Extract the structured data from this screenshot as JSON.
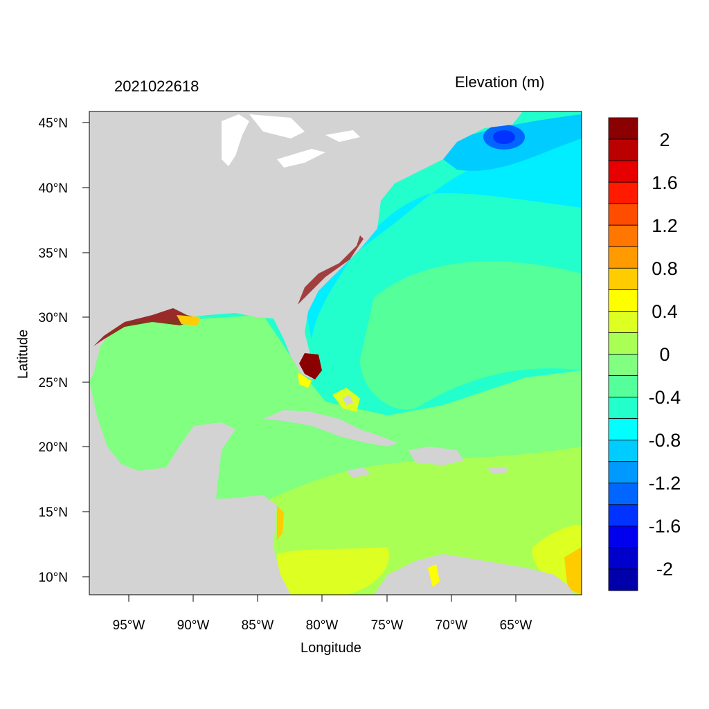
{
  "map": {
    "title_left": "2021022618",
    "title_right": "Elevation (m)",
    "xlabel": "Longitude",
    "ylabel": "Latitude",
    "x_ticks": [
      "95°W",
      "90°W",
      "85°W",
      "80°W",
      "75°W",
      "70°W",
      "65°W"
    ],
    "y_ticks": [
      "45°N",
      "40°N",
      "35°N",
      "30°N",
      "25°N",
      "20°N",
      "15°N",
      "10°N"
    ],
    "lon_range": [
      -98,
      -60
    ],
    "lat_range": [
      8.5,
      46
    ]
  },
  "colorbar": {
    "labels": [
      "2",
      "1.6",
      "1.2",
      "0.8",
      "0.4",
      "0",
      "-0.4",
      "-0.8",
      "-1.2",
      "-1.6",
      "-2"
    ],
    "colors_top_to_bottom": [
      "#8b0000",
      "#bb0000",
      "#e60000",
      "#ff1a00",
      "#ff4d00",
      "#ff7700",
      "#ff9a00",
      "#ffcc00",
      "#ffff00",
      "#ddff22",
      "#aaff55",
      "#80ff80",
      "#55ff99",
      "#22ffcc",
      "#00ffff",
      "#00ccff",
      "#0099ff",
      "#0066ff",
      "#0033ff",
      "#0000ee",
      "#0000cc",
      "#0000aa"
    ]
  },
  "colors": {
    "land": "#d3d3d3",
    "lakes": "#ffffff",
    "gulf_caribbean_north": "#80ff80",
    "caribbean_south": "#aaff55",
    "atlantic_outer": "#22ffcc",
    "coastal_shelf": "#00eeff",
    "fundy_low": "#0044ff",
    "florida_high": "#8b0000"
  }
}
